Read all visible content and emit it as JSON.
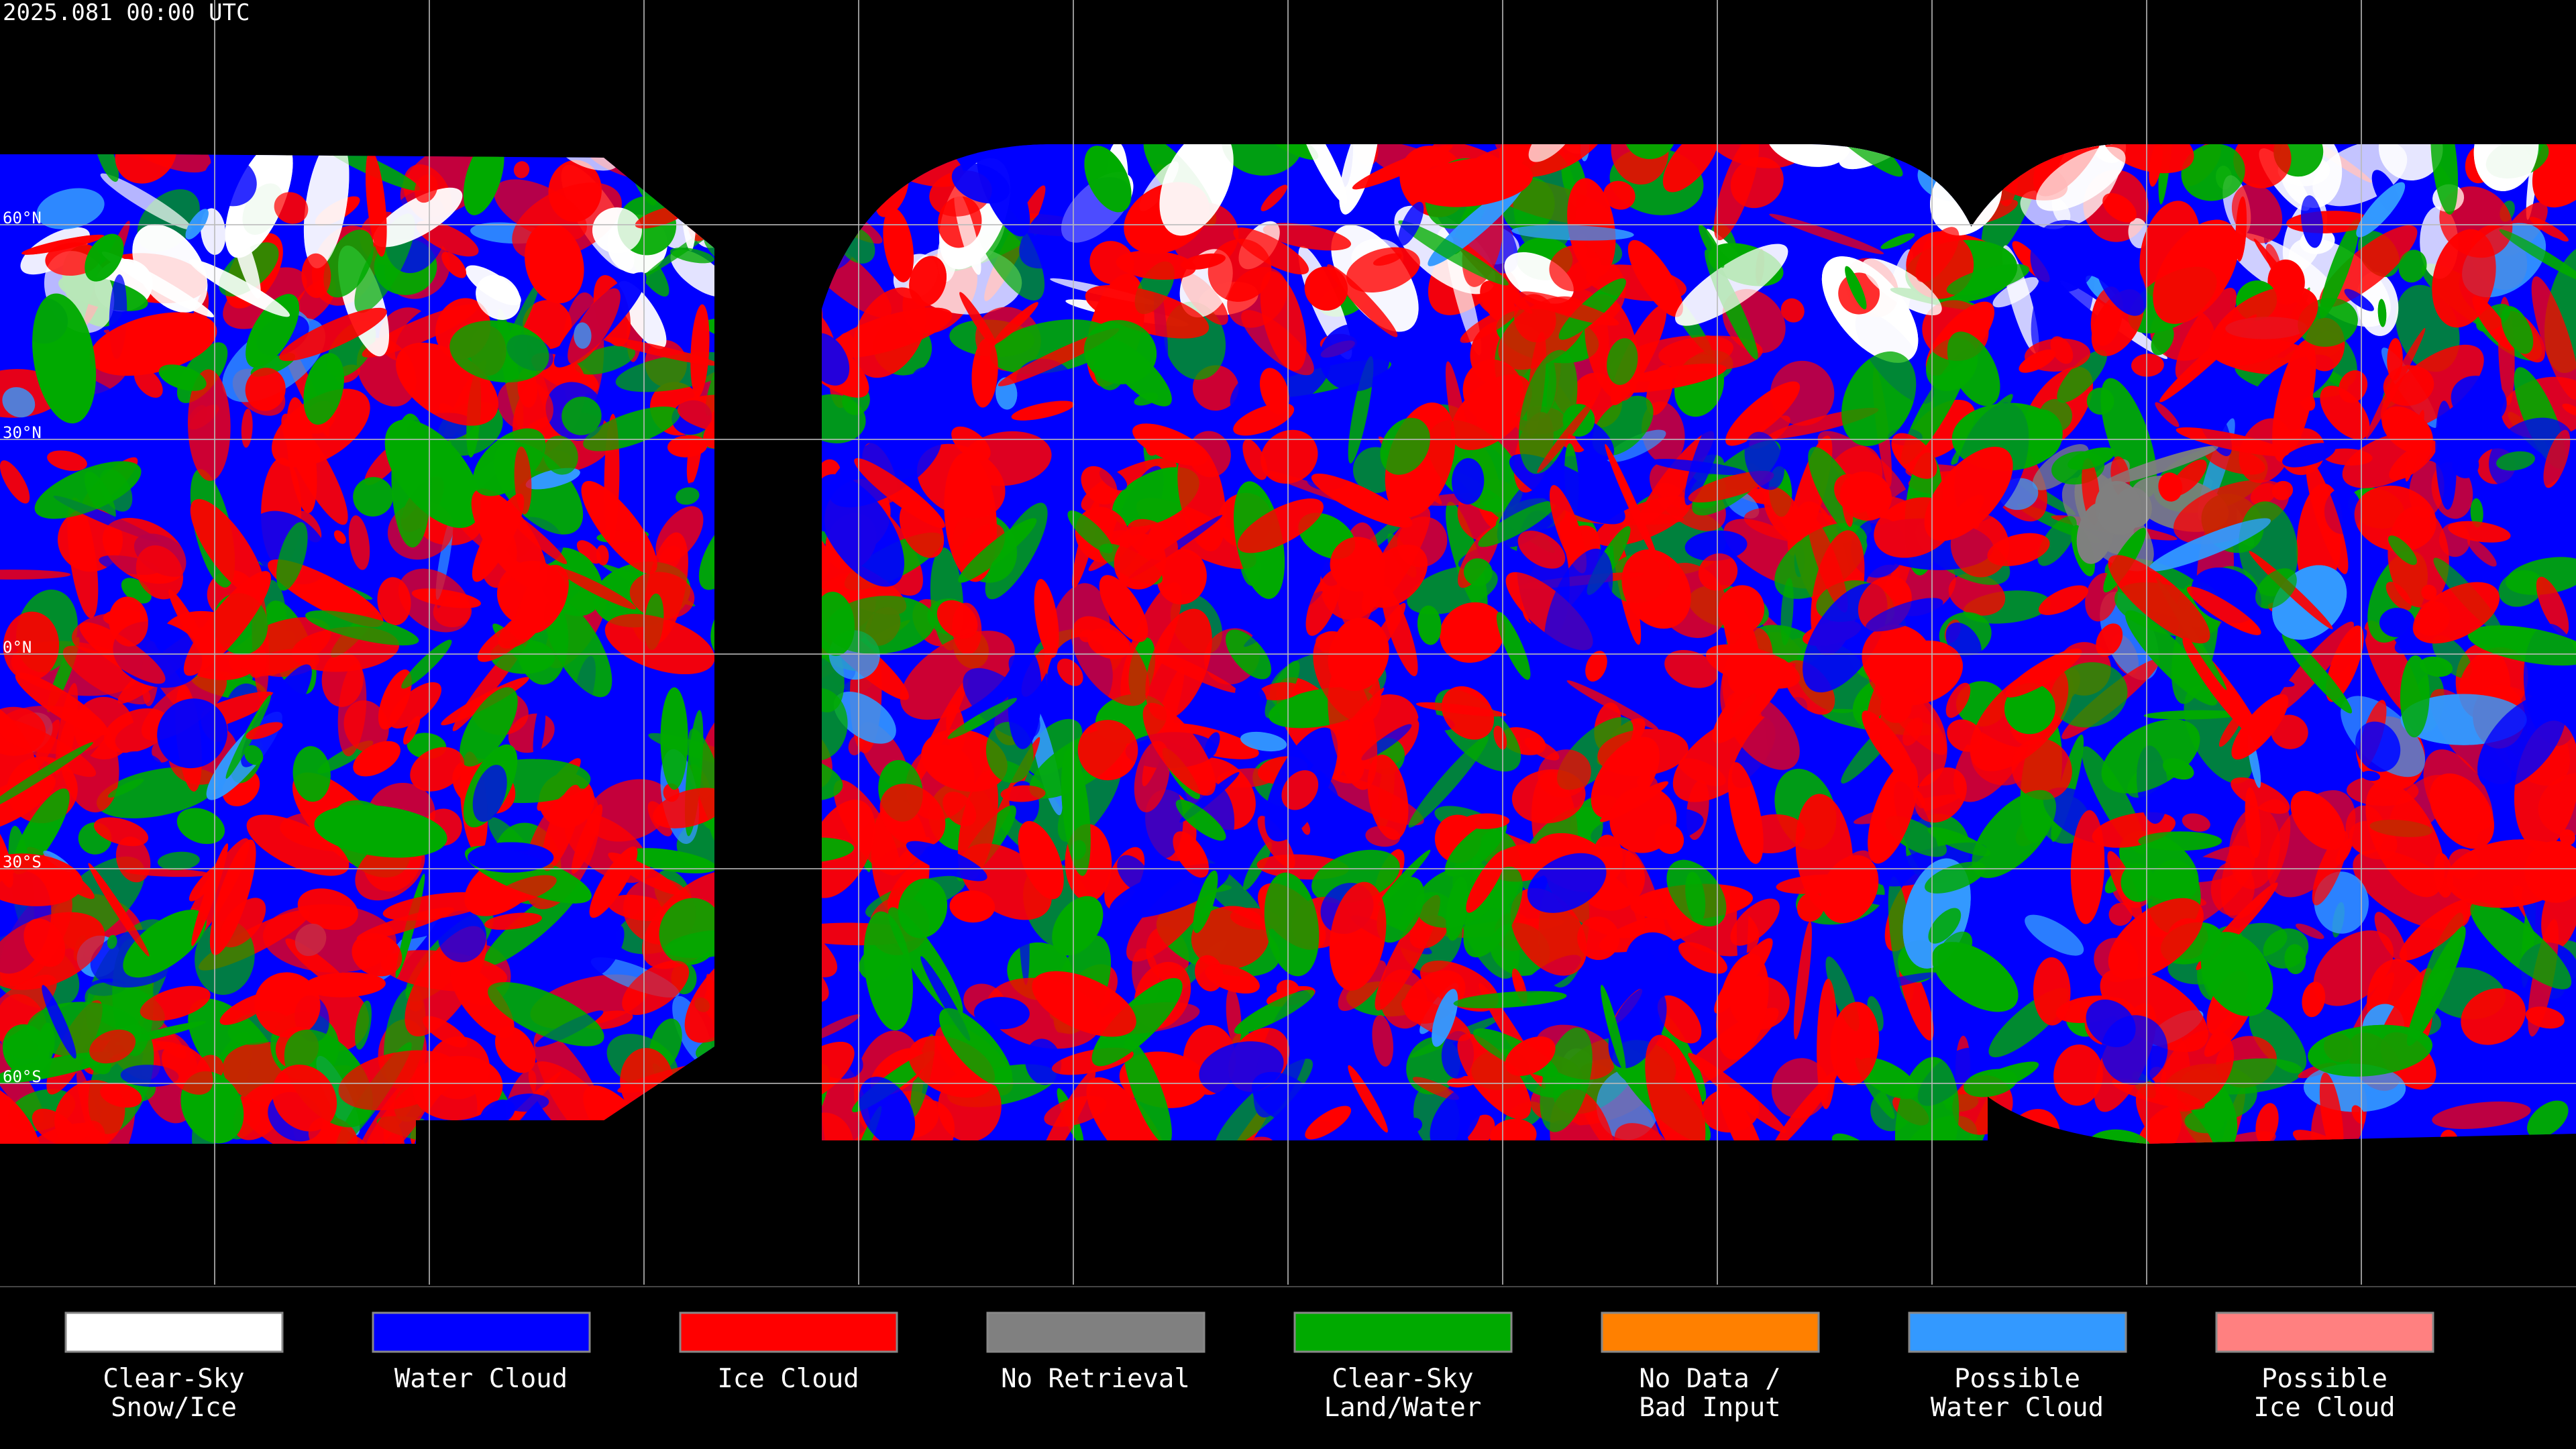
{
  "header": {
    "title": "2025.081 00:00 UTC"
  },
  "map": {
    "latitude_labels": [
      "60°N",
      "30°N",
      "0°N",
      "30°S",
      "60°S"
    ]
  },
  "legend": [
    {
      "label": [
        "Clear-Sky",
        "Snow/Ice"
      ],
      "color": "#ffffff"
    },
    {
      "label": [
        "Water Cloud"
      ],
      "color": "#0000ff"
    },
    {
      "label": [
        "Ice Cloud"
      ],
      "color": "#ff0000"
    },
    {
      "label": [
        "No Retrieval"
      ],
      "color": "#808080"
    },
    {
      "label": [
        "Clear-Sky",
        "Land/Water"
      ],
      "color": "#00aa00"
    },
    {
      "label": [
        "No Data /",
        "Bad Input"
      ],
      "color": "#ff8000"
    },
    {
      "label": [
        "Possible",
        "Water Cloud"
      ],
      "color": "#3399ff"
    },
    {
      "label": [
        "Possible",
        "Ice Cloud"
      ],
      "color": "#ff8080"
    }
  ]
}
